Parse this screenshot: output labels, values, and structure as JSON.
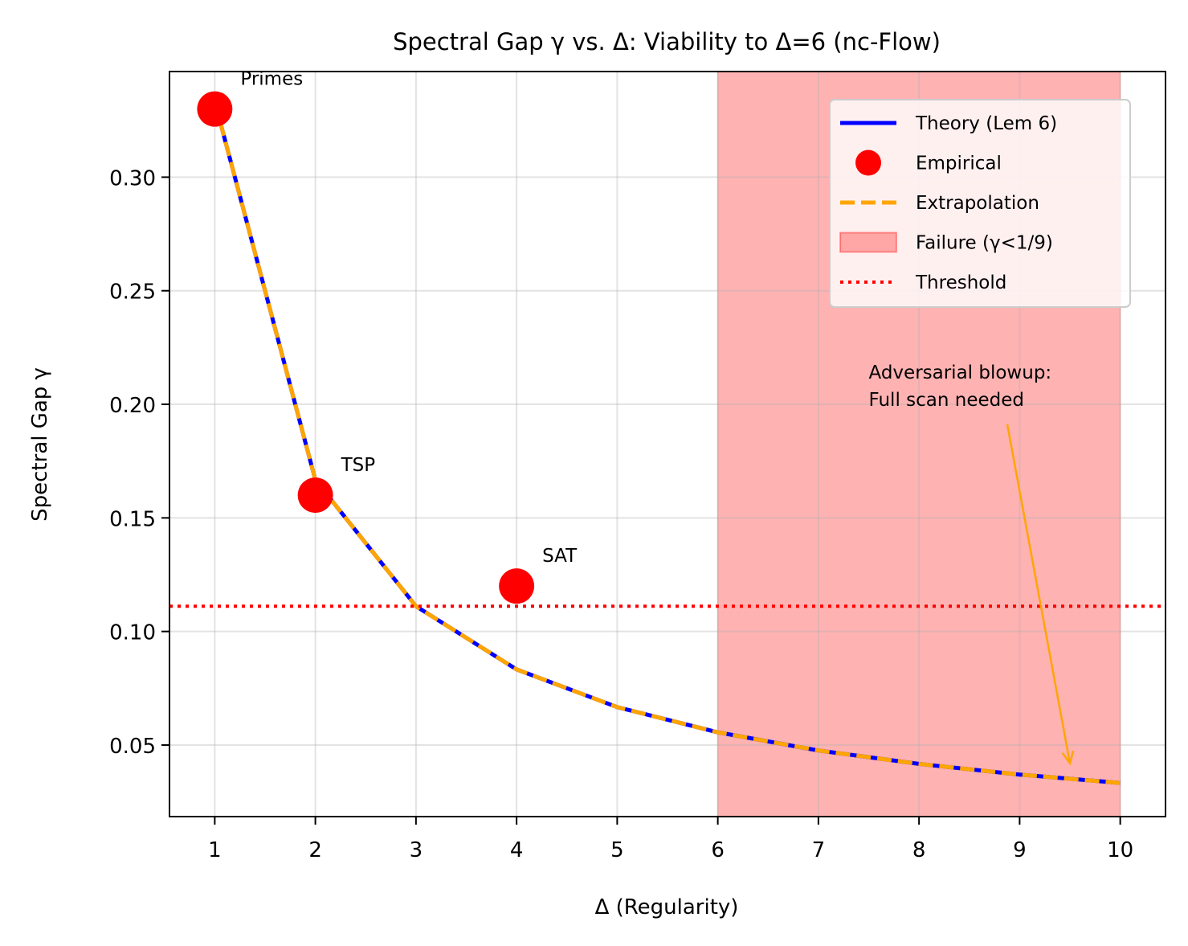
{
  "chart_data": {
    "type": "line",
    "title": "Spectral Gap γ vs. Δ: Viability to Δ=6 (nc-Flow)",
    "xlabel": "Δ (Regularity)",
    "ylabel": "Spectral Gap γ",
    "xlim": [
      0.55,
      10.45
    ],
    "ylim": [
      0.0185,
      0.3465
    ],
    "xticks": [
      "1",
      "2",
      "3",
      "4",
      "5",
      "6",
      "7",
      "8",
      "9",
      "10"
    ],
    "yticks": [
      "0.05",
      "0.10",
      "0.15",
      "0.20",
      "0.25",
      "0.30"
    ],
    "grid": true,
    "legend_position": "upper right",
    "series": [
      {
        "name": "Theory (Lem 6)",
        "style": "solid",
        "color": "#0000ff",
        "x": [
          1,
          2,
          3,
          4,
          5,
          6,
          7,
          8,
          9,
          10
        ],
        "y": [
          0.3333,
          0.1667,
          0.1111,
          0.0833,
          0.0667,
          0.0556,
          0.0476,
          0.0417,
          0.037,
          0.0333
        ]
      },
      {
        "name": "Extrapolation",
        "style": "dashed",
        "color": "#ffa500",
        "x": [
          1,
          2,
          3,
          4,
          5,
          6,
          7,
          8,
          9,
          10
        ],
        "y": [
          0.3333,
          0.1667,
          0.1111,
          0.0833,
          0.0667,
          0.0556,
          0.0476,
          0.0417,
          0.037,
          0.0333
        ]
      },
      {
        "name": "Empirical",
        "style": "markers",
        "color": "#ff0000",
        "x": [
          1,
          2,
          4
        ],
        "y": [
          0.33,
          0.16,
          0.12
        ],
        "labels": [
          "Primes",
          "TSP",
          "SAT"
        ]
      }
    ],
    "threshold": {
      "name": "Threshold",
      "y": 0.1111,
      "style": "dotted",
      "color": "#ff0000"
    },
    "failure_region": {
      "name": "Failure (γ<1/9)",
      "x_start": 6,
      "x_end": 10,
      "color": "#ff0000",
      "alpha": 0.3
    },
    "annotation": {
      "lines": [
        "Adversarial blowup:",
        "Full scan needed"
      ],
      "text_x": 7.5,
      "text_y": 0.2,
      "arrow_to_x": 9.5,
      "arrow_to_y": 0.042,
      "color": "#ffa500"
    },
    "legend": [
      {
        "label": "Theory (Lem 6)",
        "kind": "line-solid",
        "color": "#0000ff"
      },
      {
        "label": "Empirical",
        "kind": "marker",
        "color": "#ff0000"
      },
      {
        "label": "Extrapolation",
        "kind": "line-dashed",
        "color": "#ffa500"
      },
      {
        "label": "Failure (γ<1/9)",
        "kind": "patch",
        "color": "#ff0000"
      },
      {
        "label": "Threshold",
        "kind": "line-dotted",
        "color": "#ff0000"
      }
    ]
  }
}
